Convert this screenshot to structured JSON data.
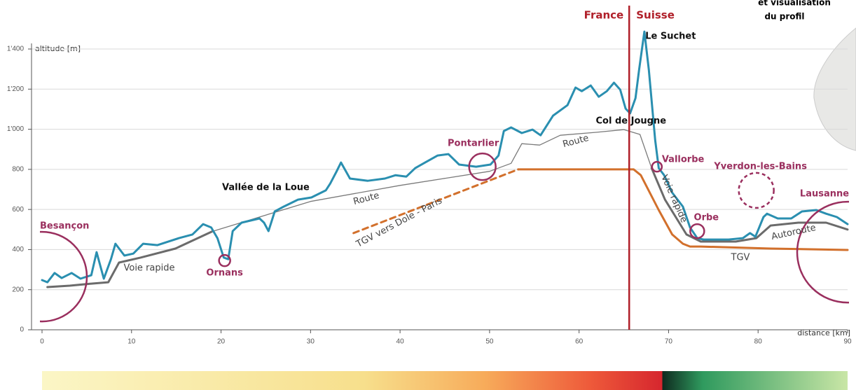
{
  "chart_data": {
    "type": "line",
    "ylabel": "altitude [m]",
    "xlabel": "distance [km]",
    "xlim": [
      0,
      90
    ],
    "ylim": [
      0,
      1400
    ],
    "xticks": [
      0,
      10,
      20,
      30,
      40,
      50,
      60,
      70,
      80,
      90
    ],
    "yticks": [
      0,
      200,
      400,
      600,
      800,
      {
        "value": 1000,
        "label": "1'000"
      },
      {
        "value": 1200,
        "label": "1'200"
      },
      {
        "value": 1400,
        "label": "1'400"
      }
    ],
    "grid": true,
    "border": {
      "x": 65.6,
      "color": "#b0202a",
      "left": "France",
      "right": "Suisse"
    },
    "series": [
      {
        "color": "#2a8fb0",
        "width": 3,
        "x": [
          0,
          0.6,
          1.4,
          2.2,
          3.3,
          4.3,
          5.5,
          6.1,
          6.9,
          7.7,
          8.2,
          9.2,
          10.2,
          11.3,
          12.9,
          15.3,
          16.8,
          18,
          18.9,
          19.6,
          20.3,
          20.8,
          21.3,
          22.3,
          24.3,
          24.8,
          25.3,
          26,
          27,
          28.6,
          30.1,
          31.7,
          32.2,
          32.9,
          33.4,
          34.4,
          36.4,
          38.3,
          39.5,
          40.7,
          41.7,
          42.8,
          44.2,
          45.4,
          46.6,
          48.5,
          50.1,
          51,
          51.6,
          52.4,
          53.6,
          54.8,
          55.7,
          57.1,
          58.7,
          59.6,
          60.3,
          61.3,
          62.2,
          63.1,
          63.9,
          64.6,
          65.2,
          65.7,
          66.3,
          66.7,
          67.3,
          67.8,
          68.5,
          68.9,
          69.5,
          70.4,
          71.6,
          72.4,
          73.2,
          73.9,
          76.7,
          78.3,
          79.1,
          79.7,
          80.6,
          81,
          82.2,
          83.7,
          84.9,
          86.5,
          87.6,
          88.8,
          90
        ],
        "values": [
          248,
          237,
          283,
          258,
          283,
          255,
          272,
          387,
          255,
          352,
          429,
          370,
          380,
          429,
          422,
          457,
          475,
          527,
          510,
          457,
          360,
          352,
          492,
          534,
          555,
          534,
          492,
          590,
          614,
          649,
          660,
          695,
          729,
          789,
          834,
          754,
          743,
          754,
          771,
          764,
          806,
          834,
          869,
          876,
          824,
          813,
          824,
          869,
          991,
          1009,
          981,
          998,
          970,
          1068,
          1120,
          1208,
          1190,
          1218,
          1162,
          1190,
          1232,
          1197,
          1103,
          1079,
          1155,
          1295,
          1487,
          1295,
          946,
          806,
          771,
          684,
          614,
          510,
          457,
          450,
          450,
          457,
          482,
          464,
          562,
          579,
          555,
          555,
          590,
          597,
          579,
          562,
          527
        ]
      },
      {
        "color": "#6b6b6b",
        "width": 3,
        "x": [
          0.6,
          3.1,
          5.5,
          7.4,
          8.6,
          11,
          14.9,
          19
        ],
        "values": [
          213,
          220,
          230,
          237,
          335,
          360,
          405,
          490
        ]
      },
      {
        "color": "#7a7a7a",
        "width": 1.3,
        "x": [
          19,
          30,
          40,
          50,
          52.4,
          53.6,
          55.6,
          57.9,
          62,
          65,
          66.8,
          68.1
        ],
        "values": [
          490,
          640,
          720,
          790,
          830,
          928,
          921,
          970,
          985,
          998,
          974,
          806
        ]
      },
      {
        "color": "#6b6b6b",
        "width": 3,
        "x": [
          68.1,
          69.6,
          70.8,
          72,
          73.6,
          77.5,
          79.8,
          81.4,
          84.5,
          87.6,
          90
        ],
        "values": [
          806,
          649,
          562,
          475,
          440,
          440,
          457,
          520,
          534,
          534,
          500
        ]
      },
      {
        "color": "#d2702c",
        "width": 3,
        "x": [
          53.2,
          66.1,
          66.9,
          68.9,
          70.4,
          71.6,
          72.4,
          73.6,
          81.4,
          90
        ],
        "values": [
          800,
          800,
          771,
          597,
          475,
          429,
          415,
          415,
          405,
          398
        ]
      },
      {
        "color": "#d2702c",
        "width": 3,
        "dashed": true,
        "x": [
          34.8,
          53.2
        ],
        "values": [
          482,
          800
        ]
      }
    ],
    "places": [
      {
        "text": "Besançon",
        "x": 0,
        "y": 265
      },
      {
        "text": "Ornans",
        "x": 20.4,
        "y": 345
      },
      {
        "text": "Pontarlier",
        "x": 49.2,
        "y": 813
      },
      {
        "text": "Vallorbe",
        "x": 68.7,
        "y": 813
      },
      {
        "text": "Orbe",
        "x": 73.2,
        "y": 492
      },
      {
        "text": "Yverdon-les-Bains",
        "x": 79.8,
        "y": 695
      },
      {
        "text": "Lausanne",
        "x": 90,
        "y": 387
      }
    ],
    "labels": [
      {
        "text": "Le Suchet",
        "x": 67.4,
        "y": 1462
      },
      {
        "text": "Col de Jougne",
        "x": 65.8,
        "y": 1040
      },
      {
        "text": "Vallée de la Loue",
        "x": 25,
        "y": 708
      }
    ],
    "line_labels": [
      "Voie rapide",
      "Route",
      "Route",
      "Voie rapide",
      "Autoroute",
      "TGV",
      "TGV vers Dole - Paris"
    ],
    "corner_text": [
      "et visualisation",
      "du profil"
    ]
  }
}
